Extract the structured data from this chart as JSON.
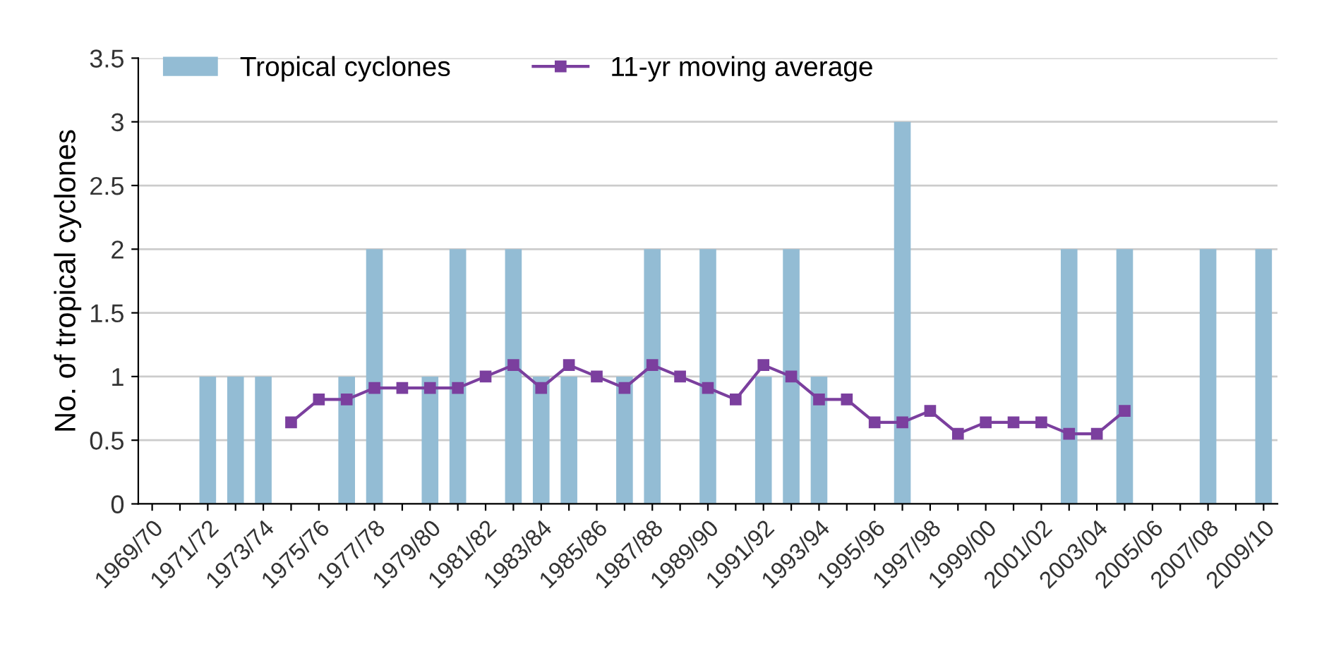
{
  "chart_data": {
    "type": "bar",
    "ylabel": "No. of tropical cyclones",
    "categories": [
      "1969/70",
      null,
      "1971/72",
      null,
      "1973/74",
      null,
      "1975/76",
      null,
      "1977/78",
      null,
      "1979/80",
      null,
      "1981/82",
      null,
      "1983/84",
      null,
      "1985/86",
      null,
      "1987/88",
      null,
      "1989/90",
      null,
      "1991/92",
      null,
      "1993/94",
      null,
      "1995/96",
      null,
      "1997/98",
      null,
      "1999/00",
      null,
      "2001/02",
      null,
      "2003/04",
      null,
      "2005/06",
      null,
      "2007/08",
      null,
      "2009/10"
    ],
    "series": [
      {
        "name": "Tropical cyclones",
        "color": "#93bcd4",
        "values": [
          0,
          0,
          1,
          1,
          1,
          0,
          0,
          1,
          2,
          0,
          1,
          2,
          0,
          2,
          1,
          1,
          0,
          1,
          2,
          0,
          2,
          0,
          1,
          2,
          1,
          0,
          0,
          3,
          0,
          0,
          0,
          0,
          0,
          2,
          0,
          2,
          0,
          0,
          2,
          0,
          2
        ]
      },
      {
        "name": "11-yr moving average",
        "type": "line",
        "color": "#7b3f9e",
        "marker": "square",
        "values": [
          null,
          null,
          null,
          null,
          null,
          0.64,
          0.82,
          0.82,
          0.91,
          0.91,
          0.91,
          0.91,
          1.0,
          1.09,
          0.91,
          1.09,
          1.0,
          0.91,
          1.09,
          1.0,
          0.91,
          0.82,
          1.09,
          1.0,
          0.82,
          0.82,
          0.64,
          0.64,
          0.73,
          0.55,
          0.64,
          0.64,
          0.64,
          0.55,
          0.55,
          0.73,
          null,
          null,
          null,
          null,
          null
        ]
      }
    ],
    "ylim": [
      0,
      3.5
    ],
    "yticks": [
      0,
      0.5,
      1,
      1.5,
      2,
      2.5,
      3,
      3.5
    ],
    "grid": "y",
    "legend": "top left"
  }
}
